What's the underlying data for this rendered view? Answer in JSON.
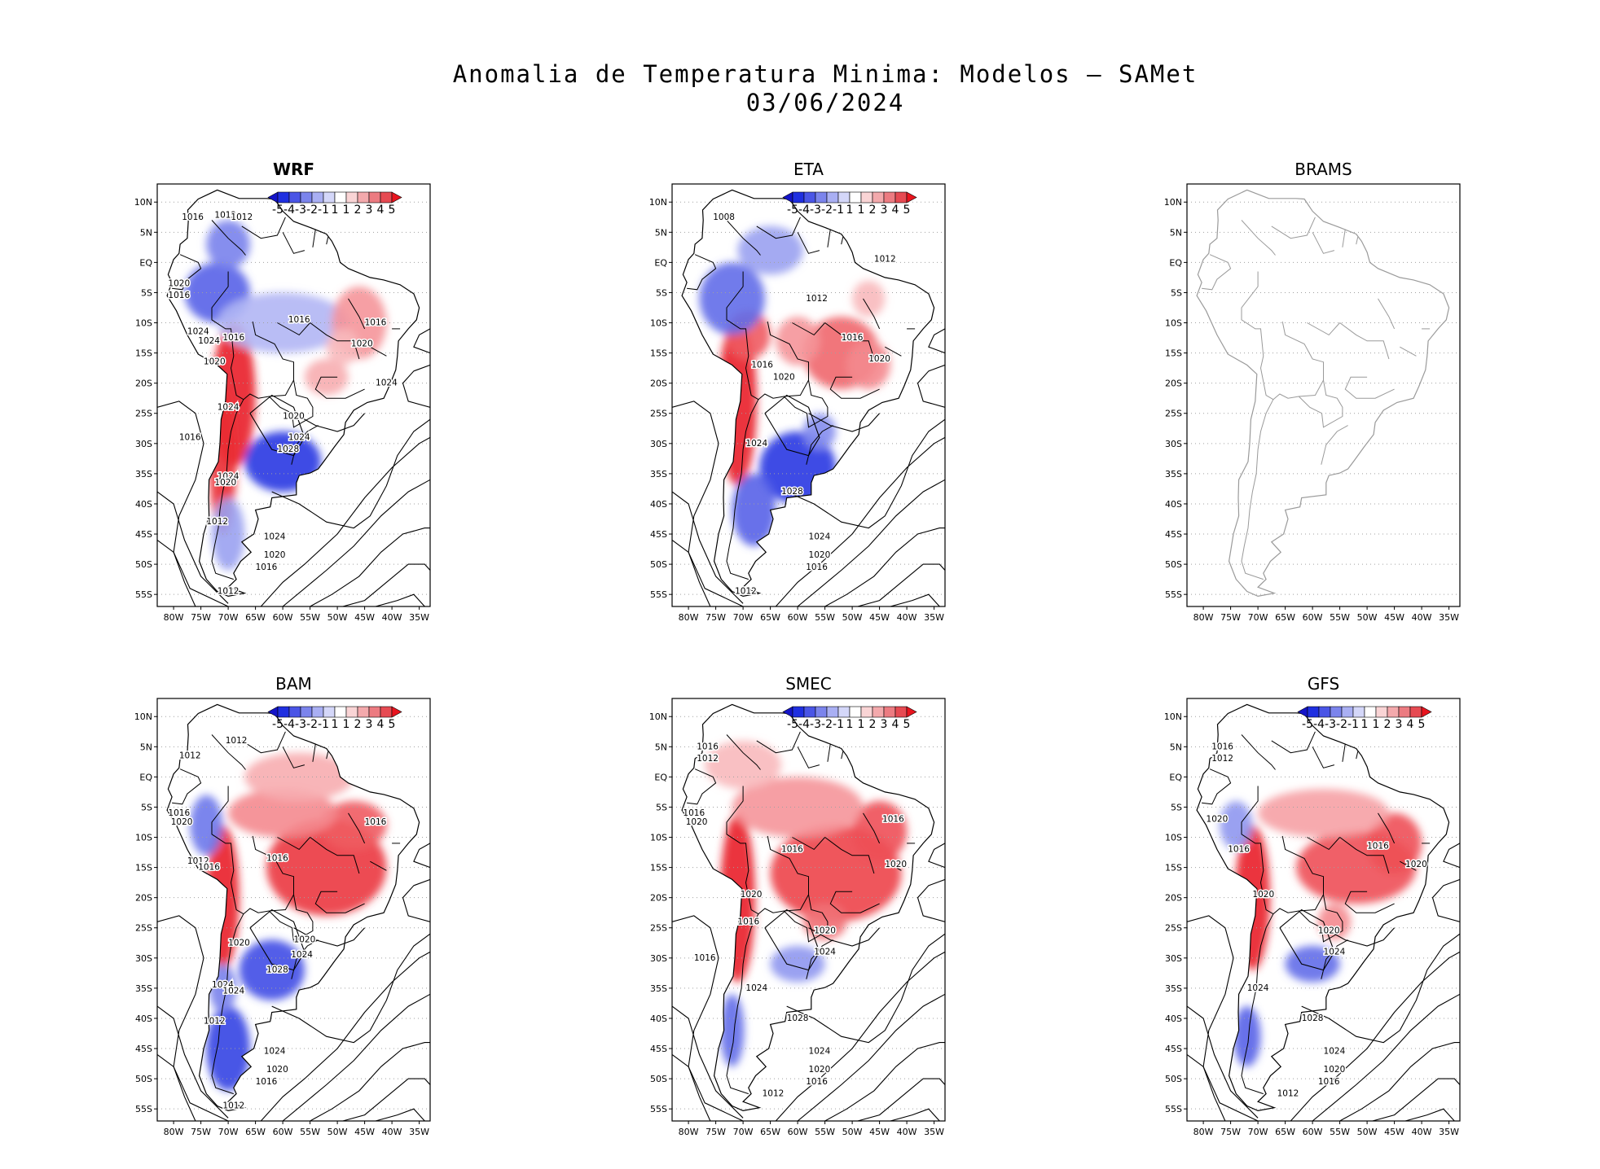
{
  "title": {
    "line1": "Anomalia de Temperatura Minima: Modelos — SAMet",
    "line2": "03/06/2024"
  },
  "colors": {
    "cold": "#1f2fe0",
    "warm": "#e8141e",
    "neutral": "#ffffff",
    "coast": "#000000",
    "coast_empty": "#9a9a9a",
    "grid": "#a0a0a0"
  },
  "chart_data": [
    {
      "type": "map",
      "panel": "WRF",
      "has_data": true,
      "variable": "minimum temperature anomaly (°C)",
      "colorbar_labels": [
        "-5",
        "-4",
        "-3",
        "-2",
        "-1",
        "1",
        "1",
        "2",
        "3",
        "4",
        "5"
      ],
      "lat_ticks": [
        "10N",
        "5N",
        "EQ",
        "5S",
        "10S",
        "15S",
        "20S",
        "25S",
        "30S",
        "35S",
        "40S",
        "45S",
        "50S",
        "55S"
      ],
      "lon_ticks": [
        "80W",
        "75W",
        "70W",
        "65W",
        "60W",
        "55W",
        "50W",
        "45W",
        "40W",
        "35W"
      ],
      "isobars": [
        {
          "label": "1016",
          "lon": -76.5,
          "lat": 7.5
        },
        {
          "label": "1012",
          "lon": -70.5,
          "lat": 7.8
        },
        {
          "label": "1012",
          "lon": -67.5,
          "lat": 7.5
        },
        {
          "label": "1020",
          "lon": -79,
          "lat": -3.5
        },
        {
          "label": "1016",
          "lon": -79,
          "lat": -5.5
        },
        {
          "label": "1024",
          "lon": -75.5,
          "lat": -11.5
        },
        {
          "label": "1024",
          "lon": -73.5,
          "lat": -13
        },
        {
          "label": "1016",
          "lon": -69,
          "lat": -12.5
        },
        {
          "label": "1020",
          "lon": -72.5,
          "lat": -16.5
        },
        {
          "label": "1016",
          "lon": -57,
          "lat": -9.5
        },
        {
          "label": "1016",
          "lon": -43,
          "lat": -10
        },
        {
          "label": "1020",
          "lon": -45.5,
          "lat": -13.5
        },
        {
          "label": "1024",
          "lon": -41,
          "lat": -20
        },
        {
          "label": "1024",
          "lon": -70,
          "lat": -24
        },
        {
          "label": "1020",
          "lon": -58,
          "lat": -25.5
        },
        {
          "label": "1024",
          "lon": -57,
          "lat": -29
        },
        {
          "label": "1028",
          "lon": -59,
          "lat": -31
        },
        {
          "label": "1016",
          "lon": -77,
          "lat": -29
        },
        {
          "label": "1024",
          "lon": -70,
          "lat": -35.5
        },
        {
          "label": "1020",
          "lon": -70.5,
          "lat": -36.5
        },
        {
          "label": "1012",
          "lon": -72,
          "lat": -43
        },
        {
          "label": "1024",
          "lon": -61.5,
          "lat": -45.5
        },
        {
          "label": "1020",
          "lon": -61.5,
          "lat": -48.5
        },
        {
          "label": "1016",
          "lon": -63,
          "lat": -50.5
        },
        {
          "label": "1012",
          "lon": -70,
          "lat": -54.5
        }
      ]
    },
    {
      "type": "map",
      "panel": "ETA",
      "has_data": true,
      "variable": "minimum temperature anomaly (°C)",
      "colorbar_labels": [
        "-5",
        "-4",
        "-3",
        "-2",
        "-1",
        "1",
        "1",
        "2",
        "3",
        "4",
        "5"
      ],
      "lat_ticks": [
        "10N",
        "5N",
        "EQ",
        "5S",
        "10S",
        "15S",
        "20S",
        "25S",
        "30S",
        "35S",
        "40S",
        "45S",
        "50S",
        "55S"
      ],
      "lon_ticks": [
        "80W",
        "75W",
        "70W",
        "65W",
        "60W",
        "55W",
        "50W",
        "45W",
        "40W",
        "35W"
      ],
      "isobars": [
        {
          "label": "1008",
          "lon": -73.5,
          "lat": 7.5
        },
        {
          "label": "1012",
          "lon": -44,
          "lat": 0.5
        },
        {
          "label": "1012",
          "lon": -56.5,
          "lat": -6
        },
        {
          "label": "1016",
          "lon": -50,
          "lat": -12.5
        },
        {
          "label": "1020",
          "lon": -45,
          "lat": -16
        },
        {
          "label": "1016",
          "lon": -66.5,
          "lat": -17
        },
        {
          "label": "1020",
          "lon": -62.5,
          "lat": -19
        },
        {
          "label": "1024",
          "lon": -67.5,
          "lat": -30
        },
        {
          "label": "1028",
          "lon": -61,
          "lat": -38
        },
        {
          "label": "1024",
          "lon": -56,
          "lat": -45.5
        },
        {
          "label": "1020",
          "lon": -56,
          "lat": -48.5
        },
        {
          "label": "1016",
          "lon": -56.5,
          "lat": -50.5
        },
        {
          "label": "1012",
          "lon": -69.5,
          "lat": -54.5
        }
      ]
    },
    {
      "type": "map",
      "panel": "BRAMS",
      "has_data": false,
      "lat_ticks": [
        "10N",
        "5N",
        "EQ",
        "5S",
        "10S",
        "15S",
        "20S",
        "25S",
        "30S",
        "35S",
        "40S",
        "45S",
        "50S",
        "55S"
      ],
      "lon_ticks": [
        "80W",
        "75W",
        "70W",
        "65W",
        "60W",
        "55W",
        "50W",
        "45W",
        "40W",
        "35W"
      ],
      "isobars": []
    },
    {
      "type": "map",
      "panel": "BAM",
      "has_data": true,
      "variable": "minimum temperature anomaly (°C)",
      "colorbar_labels": [
        "-5",
        "-4",
        "-3",
        "-2",
        "-1",
        "1",
        "1",
        "2",
        "3",
        "4",
        "5"
      ],
      "lat_ticks": [
        "10N",
        "5N",
        "EQ",
        "5S",
        "10S",
        "15S",
        "20S",
        "25S",
        "30S",
        "35S",
        "40S",
        "45S",
        "50S",
        "55S"
      ],
      "lon_ticks": [
        "80W",
        "75W",
        "70W",
        "65W",
        "60W",
        "55W",
        "50W",
        "45W",
        "40W",
        "35W"
      ],
      "isobars": [
        {
          "label": "1012",
          "lon": -68.5,
          "lat": 6
        },
        {
          "label": "1012",
          "lon": -77,
          "lat": 3.5
        },
        {
          "label": "1016",
          "lon": -79,
          "lat": -6
        },
        {
          "label": "1020",
          "lon": -78.5,
          "lat": -7.5
        },
        {
          "label": "1016",
          "lon": -61,
          "lat": -13.5
        },
        {
          "label": "1016",
          "lon": -43,
          "lat": -7.5
        },
        {
          "label": "1012",
          "lon": -75.5,
          "lat": -14
        },
        {
          "label": "1016",
          "lon": -73.5,
          "lat": -15
        },
        {
          "label": "1020",
          "lon": -68,
          "lat": -27.5
        },
        {
          "label": "1020",
          "lon": -56,
          "lat": -27
        },
        {
          "label": "1024",
          "lon": -56.5,
          "lat": -29.5
        },
        {
          "label": "1028",
          "lon": -61,
          "lat": -32
        },
        {
          "label": "1024",
          "lon": -71,
          "lat": -34.5
        },
        {
          "label": "1024",
          "lon": -69,
          "lat": -35.5
        },
        {
          "label": "1012",
          "lon": -72.5,
          "lat": -40.5
        },
        {
          "label": "1024",
          "lon": -61.5,
          "lat": -45.5
        },
        {
          "label": "1020",
          "lon": -61,
          "lat": -48.5
        },
        {
          "label": "1016",
          "lon": -63,
          "lat": -50.5
        },
        {
          "label": "1012",
          "lon": -69,
          "lat": -54.5
        }
      ]
    },
    {
      "type": "map",
      "panel": "SMEC",
      "has_data": true,
      "variable": "minimum temperature anomaly (°C)",
      "colorbar_labels": [
        "-5",
        "-4",
        "-3",
        "-2",
        "-1",
        "1",
        "1",
        "2",
        "3",
        "4",
        "5"
      ],
      "lat_ticks": [
        "10N",
        "5N",
        "EQ",
        "5S",
        "10S",
        "15S",
        "20S",
        "25S",
        "30S",
        "35S",
        "40S",
        "45S",
        "50S",
        "55S"
      ],
      "lon_ticks": [
        "80W",
        "75W",
        "70W",
        "65W",
        "60W",
        "55W",
        "50W",
        "45W",
        "40W",
        "35W"
      ],
      "isobars": [
        {
          "label": "1016",
          "lon": -76.5,
          "lat": 5
        },
        {
          "label": "1012",
          "lon": -76.5,
          "lat": 3
        },
        {
          "label": "1016",
          "lon": -79,
          "lat": -6
        },
        {
          "label": "1020",
          "lon": -78.5,
          "lat": -7.5
        },
        {
          "label": "1016",
          "lon": -61,
          "lat": -12
        },
        {
          "label": "1016",
          "lon": -42.5,
          "lat": -7
        },
        {
          "label": "1020",
          "lon": -42,
          "lat": -14.5
        },
        {
          "label": "1020",
          "lon": -68.5,
          "lat": -19.5
        },
        {
          "label": "1016",
          "lon": -69,
          "lat": -24
        },
        {
          "label": "1020",
          "lon": -55,
          "lat": -25.5
        },
        {
          "label": "1024",
          "lon": -55,
          "lat": -29
        },
        {
          "label": "1016",
          "lon": -77,
          "lat": -30
        },
        {
          "label": "1024",
          "lon": -67.5,
          "lat": -35
        },
        {
          "label": "1028",
          "lon": -60,
          "lat": -40
        },
        {
          "label": "1024",
          "lon": -56,
          "lat": -45.5
        },
        {
          "label": "1020",
          "lon": -56,
          "lat": -48.5
        },
        {
          "label": "1016",
          "lon": -56.5,
          "lat": -50.5
        },
        {
          "label": "1012",
          "lon": -64.5,
          "lat": -52.5
        }
      ]
    },
    {
      "type": "map",
      "panel": "GFS",
      "has_data": true,
      "variable": "minimum temperature anomaly (°C)",
      "colorbar_labels": [
        "-5",
        "-4",
        "-3",
        "-2",
        "-1",
        "1",
        "1",
        "2",
        "3",
        "4",
        "5"
      ],
      "lat_ticks": [
        "10N",
        "5N",
        "EQ",
        "5S",
        "10S",
        "15S",
        "20S",
        "25S",
        "30S",
        "35S",
        "40S",
        "45S",
        "50S",
        "55S"
      ],
      "lon_ticks": [
        "80W",
        "75W",
        "70W",
        "65W",
        "60W",
        "55W",
        "50W",
        "45W",
        "40W",
        "35W"
      ],
      "isobars": [
        {
          "label": "1016",
          "lon": -76.5,
          "lat": 5
        },
        {
          "label": "1012",
          "lon": -76.5,
          "lat": 3
        },
        {
          "label": "1020",
          "lon": -77.5,
          "lat": -7
        },
        {
          "label": "1016",
          "lon": -73.5,
          "lat": -12
        },
        {
          "label": "1016",
          "lon": -48,
          "lat": -11.5
        },
        {
          "label": "1020",
          "lon": -41,
          "lat": -14.5
        },
        {
          "label": "1020",
          "lon": -69,
          "lat": -19.5
        },
        {
          "label": "1020",
          "lon": -57,
          "lat": -25.5
        },
        {
          "label": "1024",
          "lon": -56,
          "lat": -29
        },
        {
          "label": "1024",
          "lon": -70,
          "lat": -35
        },
        {
          "label": "1028",
          "lon": -60,
          "lat": -40
        },
        {
          "label": "1024",
          "lon": -56,
          "lat": -45.5
        },
        {
          "label": "1020",
          "lon": -56,
          "lat": -48.5
        },
        {
          "label": "1016",
          "lon": -57,
          "lat": -50.5
        },
        {
          "label": "1012",
          "lon": -64.5,
          "lat": -52.5
        }
      ]
    }
  ]
}
